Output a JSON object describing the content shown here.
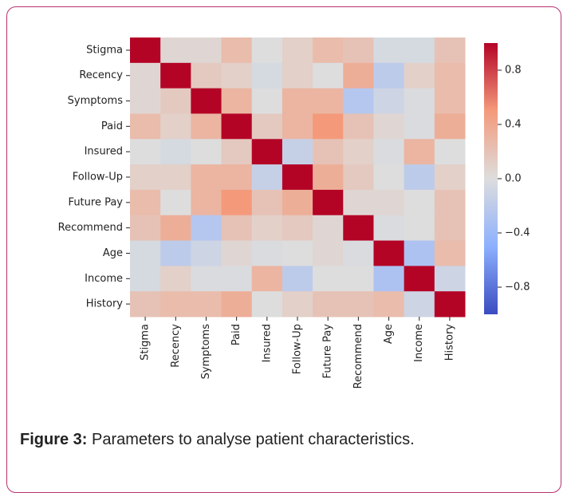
{
  "chart_data": {
    "type": "heatmap",
    "rows": [
      "Stigma",
      "Recency",
      "Symptoms",
      "Paid",
      "Insured",
      "Follow-Up",
      "Future Pay",
      "Recommend",
      "Age",
      "Income",
      "History"
    ],
    "columns": [
      "Stigma",
      "Recency",
      "Symptoms",
      "Paid",
      "Insured",
      "Follow-Up",
      "Future Pay",
      "Recommend",
      "Age",
      "Income",
      "History"
    ],
    "z": [
      [
        1,
        0.05,
        0.05,
        0.25,
        0.0,
        0.1,
        0.25,
        0.2,
        -0.05,
        -0.05,
        0.2
      ],
      [
        0.05,
        1,
        0.15,
        0.1,
        -0.05,
        0.1,
        0.0,
        0.35,
        -0.2,
        0.1,
        0.25
      ],
      [
        0.05,
        0.15,
        1,
        0.3,
        0.0,
        0.3,
        0.3,
        -0.25,
        -0.1,
        -0.02,
        0.25
      ],
      [
        0.25,
        0.1,
        0.3,
        1,
        0.15,
        0.3,
        0.5,
        0.2,
        0.05,
        -0.02,
        0.35
      ],
      [
        0.0,
        -0.05,
        0.0,
        0.15,
        1,
        -0.15,
        0.2,
        0.1,
        -0.02,
        0.3,
        0.0
      ],
      [
        0.1,
        0.1,
        0.3,
        0.3,
        -0.15,
        1,
        0.35,
        0.15,
        0.0,
        -0.2,
        0.1
      ],
      [
        0.25,
        0.0,
        0.3,
        0.5,
        0.2,
        0.35,
        1,
        0.05,
        0.05,
        0.0,
        0.2
      ],
      [
        0.2,
        0.35,
        -0.25,
        0.2,
        0.1,
        0.15,
        0.05,
        1,
        -0.02,
        0.0,
        0.2
      ],
      [
        -0.05,
        -0.2,
        -0.1,
        0.05,
        -0.02,
        0.0,
        0.05,
        -0.02,
        1,
        -0.3,
        0.25
      ],
      [
        -0.05,
        0.1,
        -0.02,
        -0.02,
        0.3,
        -0.2,
        0.0,
        0.0,
        -0.3,
        1,
        -0.1
      ],
      [
        0.2,
        0.25,
        0.25,
        0.35,
        0.0,
        0.1,
        0.2,
        0.2,
        0.25,
        -0.1,
        1
      ]
    ],
    "colormap": "coolwarm",
    "clim": [
      -1,
      1
    ],
    "cticks": [
      {
        "value": -0.8,
        "label": "−0.8"
      },
      {
        "value": -0.4,
        "label": "−0.4"
      },
      {
        "value": 0,
        "label": "0.0"
      },
      0.4,
      0.8
    ]
  },
  "caption": {
    "label": "Figure 3:",
    "text": "Parameters to analyse patient characteristics."
  }
}
